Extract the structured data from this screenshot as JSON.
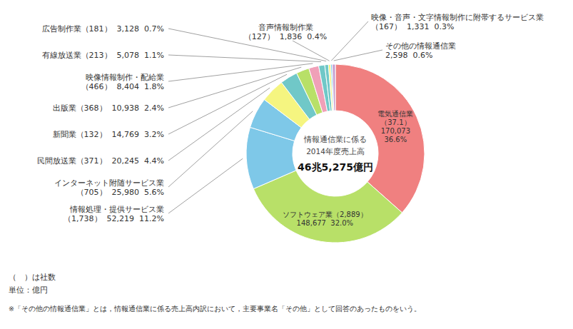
{
  "chart_data": {
    "type": "pie",
    "categories": [
      "電気通信業\n（37.1）\n170,073\n36.6%",
      "ソフトウェア業（2,889）\n148,677  32.0%",
      "情報処理・提供サービス業\n（1,738）  52,219  11.2%",
      "インターネット附随サービス業\n（705）  25,980  5.6%",
      "民間放送業（371）  20,245  4.4%",
      "新聞業（132）  14,769  3.2%",
      "出版業（368）  10,938  2.4%",
      "映像情報制作・配給業\n（466）  8,404  1.8%",
      "有線放送業（213）  5,078  1.1%",
      "広告制作業（181）  3,128  0.7%",
      "音声情報制作業\n（127）  1,836  0.4%",
      "映像・音声・文字情報制作に附帯するサービス業\n（167）  1,331  0.3%",
      "その他の情報通信業\n2,598  0.6%"
    ],
    "values": [
      170073,
      148677,
      52219,
      25980,
      20245,
      14769,
      10938,
      8404,
      5078,
      3128,
      1836,
      1331,
      2598
    ],
    "colors": [
      "#f08080",
      "#b8e068",
      "#7ec8e8",
      "#7ec8e8",
      "#f5f580",
      "#70c8c8",
      "#b8e068",
      "#f0a0b8",
      "#70c8c8",
      "#70c8c8",
      "#f5f580",
      "#7ec8e8",
      "#c8a0d0"
    ],
    "center_text": [
      "情報通信業に係る",
      "2014年度売上高",
      "46兆5,275億円"
    ],
    "notes": [
      "（　）は社数",
      "単位：億円",
      "※「その他の情報通信業」とは，情報通信業に係る売上高内訳において，主要事業名「その他」として回答のあったものをいう。"
    ]
  }
}
